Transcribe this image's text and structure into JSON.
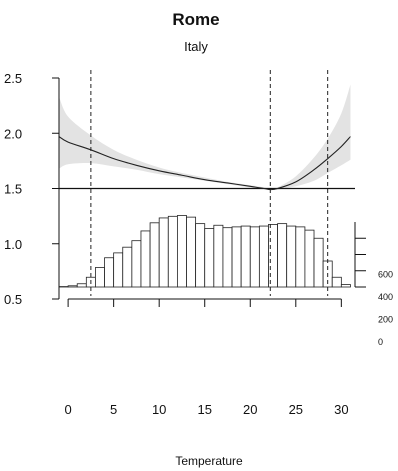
{
  "chart_data": {
    "type": "line",
    "title": "Rome",
    "subtitle": "Italy",
    "xlabel": "Temperature",
    "ylabel": "",
    "xlim": [
      -1,
      31.5
    ],
    "x_ticks": [
      0,
      5,
      10,
      15,
      20,
      25,
      30
    ],
    "rr_axis": {
      "ylim": [
        0.5,
        2.5
      ],
      "ticks": [
        "0.5",
        "1.0",
        "1.5",
        "2.0",
        "2.5"
      ]
    },
    "reference_line_y": 1.5,
    "series": [
      {
        "type": "line",
        "x": [
          -1,
          0,
          2.5,
          5,
          7.5,
          10,
          12.5,
          15,
          17.5,
          20,
          21.5,
          22.2,
          23,
          25,
          27,
          28.5,
          30,
          31
        ],
        "y": [
          1.97,
          1.92,
          1.85,
          1.77,
          1.71,
          1.66,
          1.62,
          1.58,
          1.55,
          1.52,
          1.5,
          1.49,
          1.5,
          1.56,
          1.67,
          1.77,
          1.88,
          1.97
        ],
        "ci_lower": [
          1.68,
          1.72,
          1.73,
          1.7,
          1.67,
          1.63,
          1.6,
          1.57,
          1.54,
          1.51,
          1.5,
          1.49,
          1.49,
          1.52,
          1.57,
          1.64,
          1.71,
          1.76
        ],
        "ci_upper": [
          2.33,
          2.15,
          1.98,
          1.85,
          1.76,
          1.69,
          1.64,
          1.6,
          1.56,
          1.53,
          1.51,
          1.49,
          1.51,
          1.61,
          1.78,
          1.95,
          2.18,
          2.44
        ]
      },
      {
        "type": "histogram",
        "bin_width": 1,
        "bin_starts": [
          -2,
          -1,
          0,
          1,
          2,
          3,
          4,
          5,
          6,
          7,
          8,
          9,
          10,
          11,
          12,
          13,
          14,
          15,
          16,
          17,
          18,
          19,
          20,
          21,
          22,
          23,
          24,
          25,
          26,
          27,
          28,
          29,
          30
        ],
        "counts": [
          0,
          5,
          15,
          40,
          120,
          240,
          360,
          420,
          490,
          570,
          690,
          790,
          850,
          870,
          880,
          860,
          780,
          720,
          760,
          730,
          740,
          750,
          740,
          750,
          770,
          780,
          750,
          740,
          700,
          600,
          320,
          120,
          30
        ]
      }
    ],
    "count_axis": {
      "range": [
        0,
        800
      ],
      "ticks": [
        "0",
        "200",
        "400",
        "600"
      ]
    },
    "vertical_lines_x": [
      2.5,
      22.2,
      28.5
    ]
  }
}
